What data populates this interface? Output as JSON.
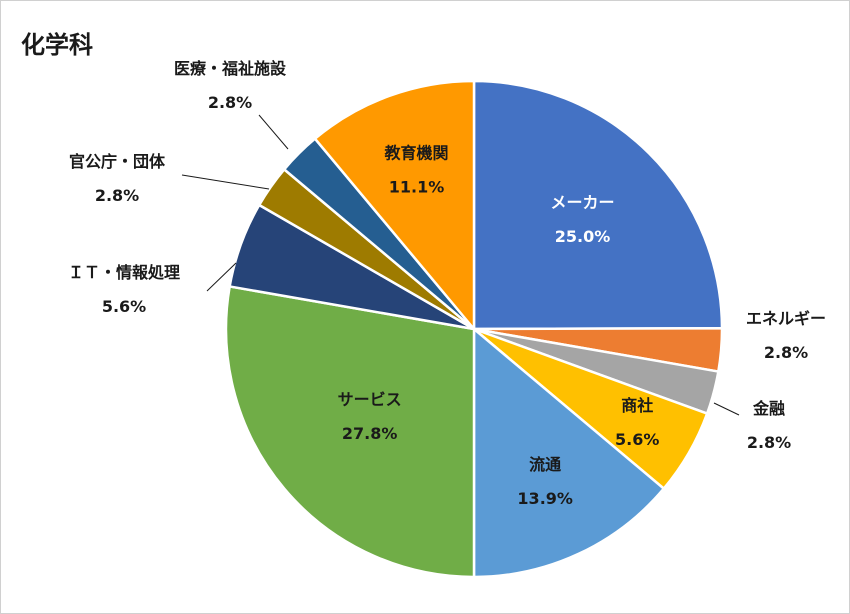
{
  "chart_data": {
    "type": "pie",
    "title": "化学科",
    "start_angle_deg": 0,
    "direction": "clockwise",
    "slices": [
      {
        "label": "メーカー",
        "value": 25.0,
        "pct_text": "25.0%",
        "color": "#4472C4",
        "label_color": "#FFFFFF",
        "label_mode": "inside"
      },
      {
        "label": "エネルギー",
        "value": 2.8,
        "pct_text": "2.8%",
        "color": "#ED7D31",
        "label_color": "#1A1A1A",
        "label_mode": "outside"
      },
      {
        "label": "金融",
        "value": 2.8,
        "pct_text": "2.8%",
        "color": "#A5A5A5",
        "label_color": "#1A1A1A",
        "label_mode": "outside"
      },
      {
        "label": "商社",
        "value": 5.6,
        "pct_text": "5.6%",
        "color": "#FFC000",
        "label_color": "#1A1A1A",
        "label_mode": "inside"
      },
      {
        "label": "流通",
        "value": 13.9,
        "pct_text": "13.9%",
        "color": "#5B9BD5",
        "label_color": "#1A1A1A",
        "label_mode": "inside"
      },
      {
        "label": "サービス",
        "value": 27.8,
        "pct_text": "27.8%",
        "color": "#70AD47",
        "label_color": "#1A1A1A",
        "label_mode": "inside"
      },
      {
        "label": "ＩＴ・情報処理",
        "value": 5.6,
        "pct_text": "5.6%",
        "color": "#264478",
        "label_color": "#1A1A1A",
        "label_mode": "outside"
      },
      {
        "label": "官公庁・団体",
        "value": 2.8,
        "pct_text": "2.8%",
        "color": "#9E7B00",
        "label_color": "#1A1A1A",
        "label_mode": "outside"
      },
      {
        "label": "医療・福祉施設",
        "value": 2.8,
        "pct_text": "2.8%",
        "color": "#255E91",
        "label_color": "#1A1A1A",
        "label_mode": "outside"
      },
      {
        "label": "教育機関",
        "value": 11.1,
        "pct_text": "11.1%",
        "color": "#FF9900",
        "label_color": "#1A1A1A",
        "label_mode": "inside"
      }
    ]
  }
}
